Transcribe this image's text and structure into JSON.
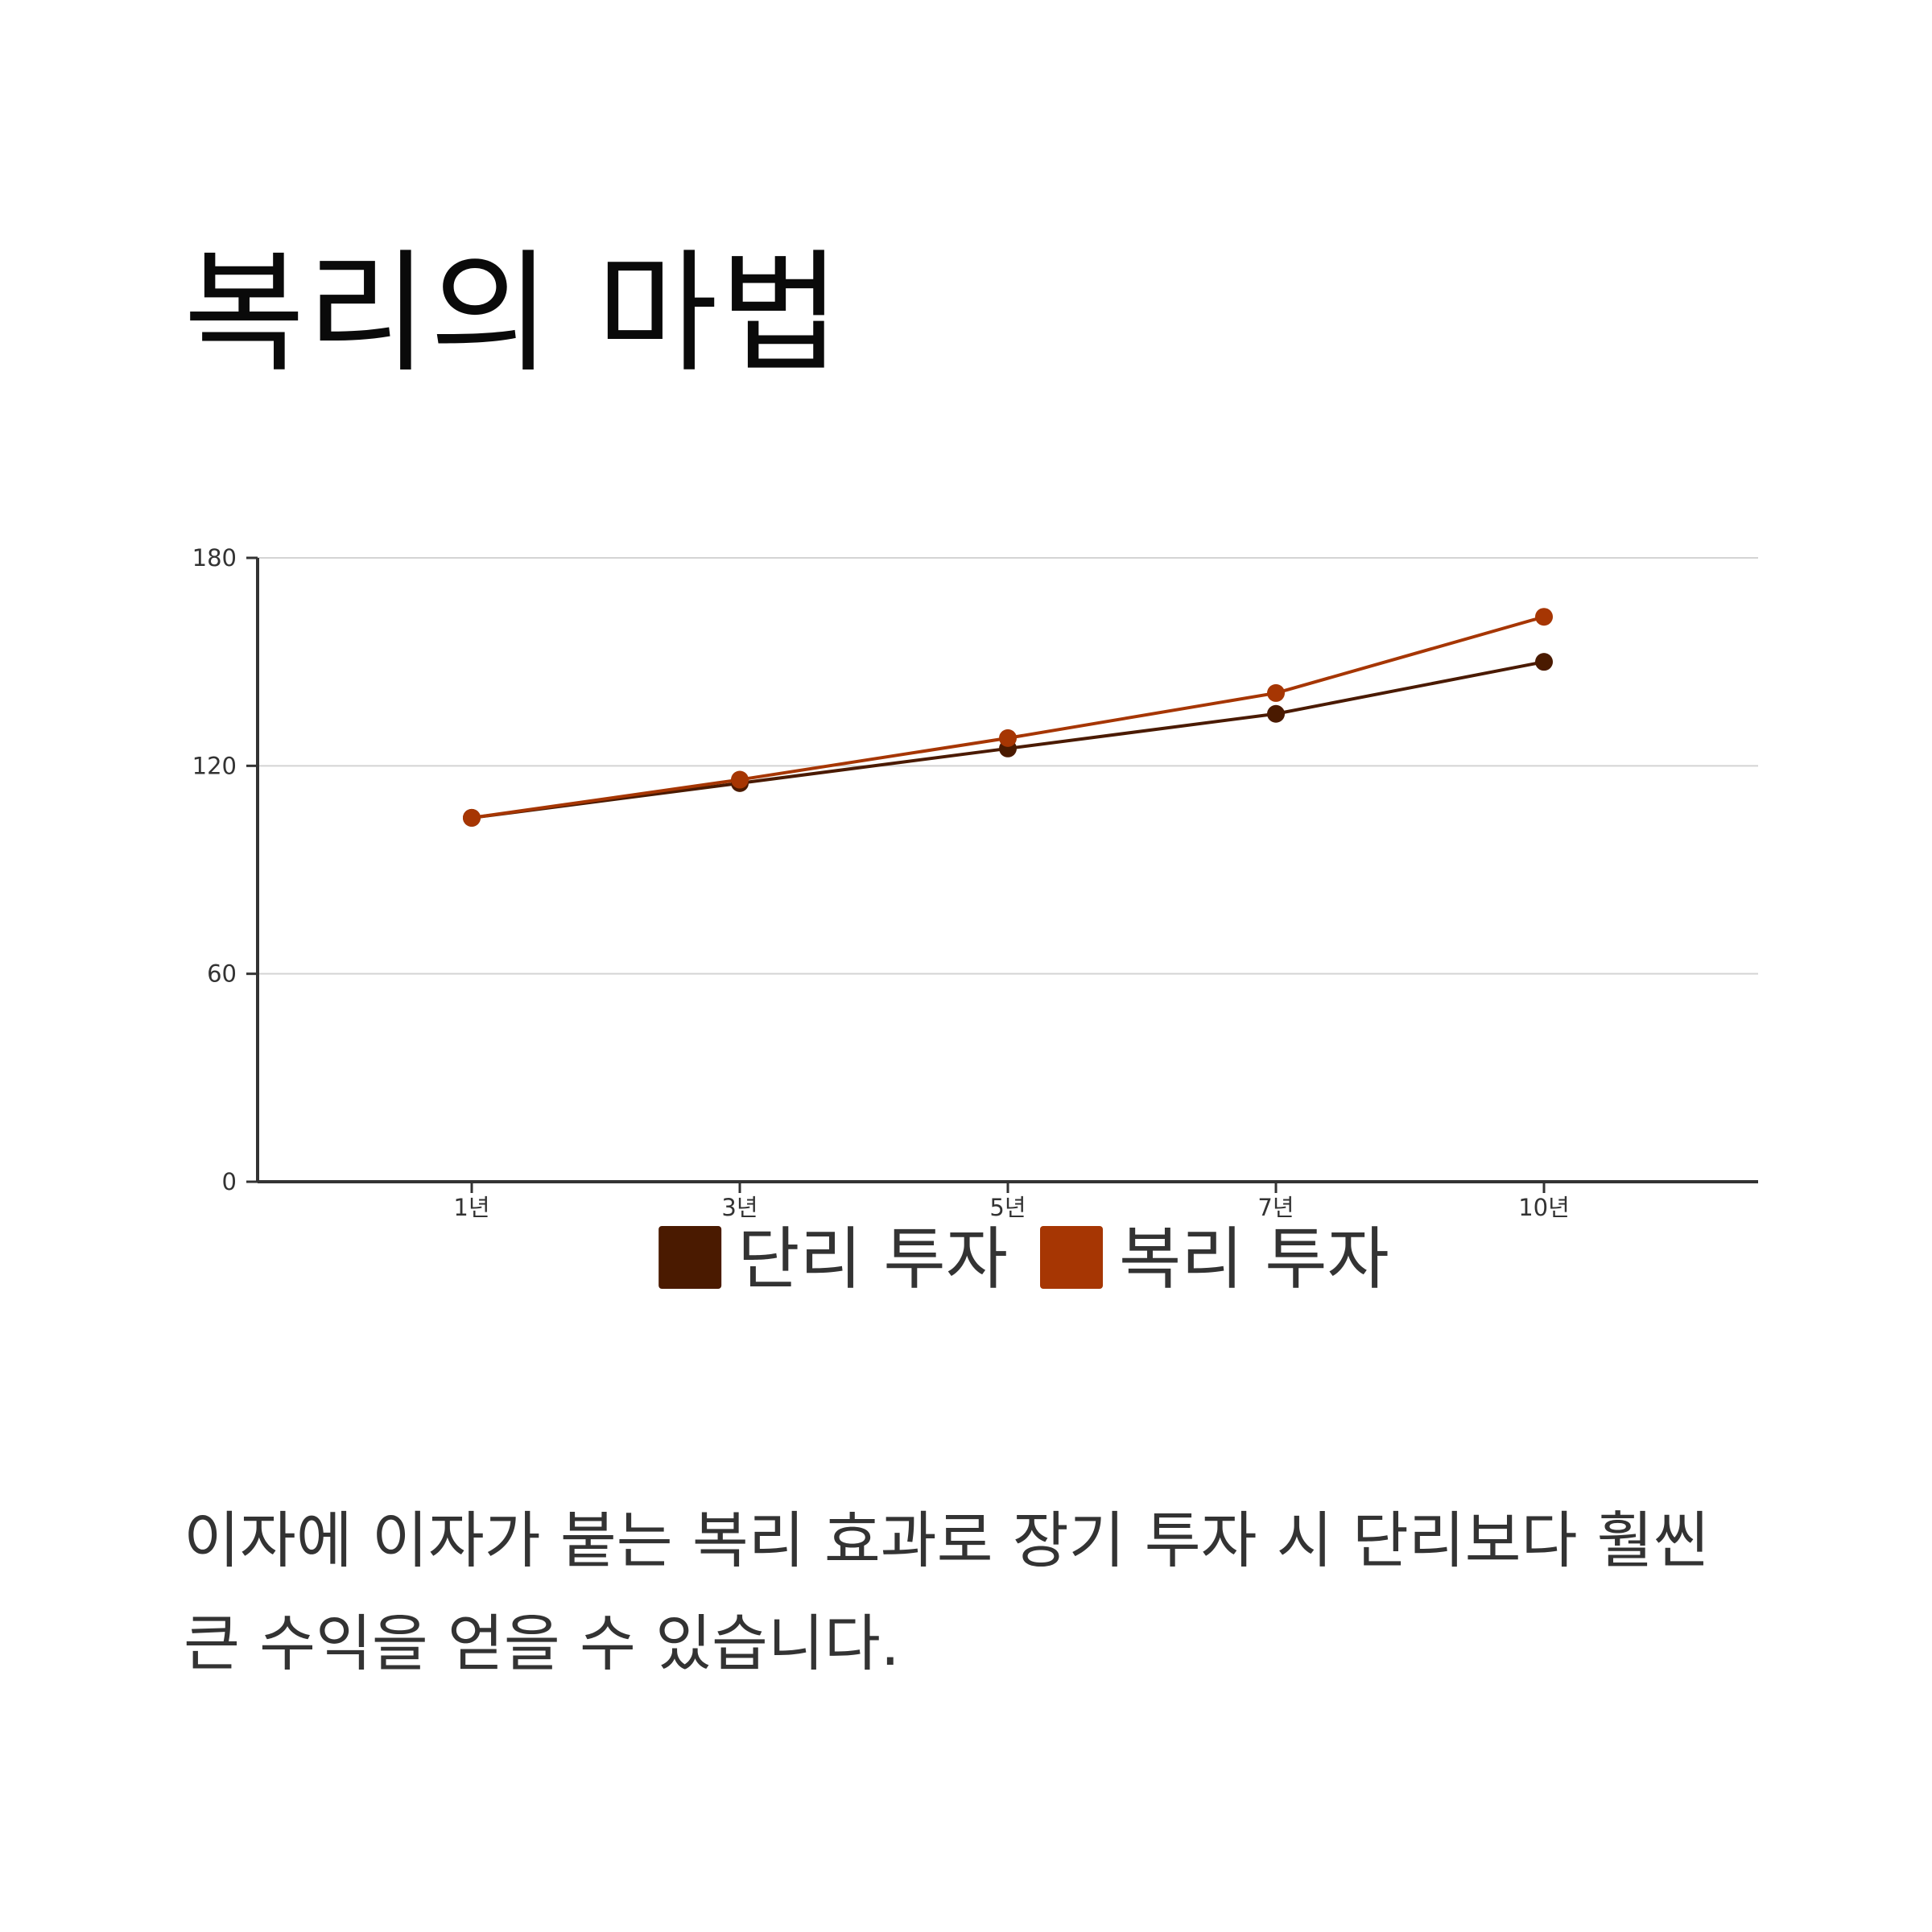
{
  "title": "복리의 마법",
  "description": "이자에 이자가 붙는 복리 효과로 장기 투자 시 단리보다 훨씬 큰 수익을 얻을 수 있습니다.",
  "chart_data": {
    "type": "line",
    "title": "",
    "xlabel": "",
    "ylabel": "",
    "categories": [
      "1년",
      "3년",
      "5년",
      "7년",
      "10년"
    ],
    "ylim": [
      0,
      180
    ],
    "yticks": [
      0,
      60,
      120,
      180
    ],
    "grid": true,
    "legend_position": "bottom",
    "series": [
      {
        "name": "단리 투자",
        "color": "#4a1a00",
        "values": [
          105,
          115,
          125,
          135,
          150
        ]
      },
      {
        "name": "복리 투자",
        "color": "#a63603",
        "values": [
          105,
          116,
          128,
          141,
          163
        ]
      }
    ]
  }
}
